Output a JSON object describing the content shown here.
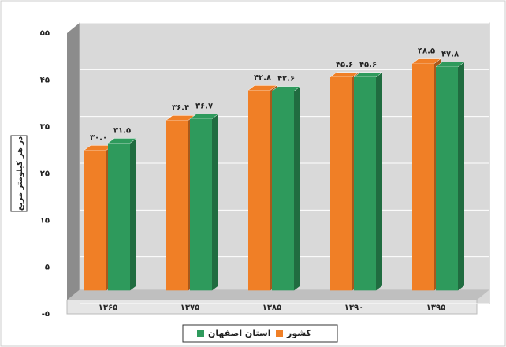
{
  "chart_data": {
    "type": "bar",
    "y_axis_label": "در هر کیلومتر مربع",
    "categories": [
      "۱۳۶۵",
      "۱۳۷۵",
      "۱۳۸۵",
      "۱۳۹۰",
      "۱۳۹۵"
    ],
    "series": [
      {
        "name": "کشور",
        "color": "#f07f26",
        "values": [
          30.0,
          36.4,
          42.8,
          45.6,
          48.5
        ],
        "value_labels": [
          "۳۰.۰",
          "۳۶.۴",
          "۴۲.۸",
          "۴۵.۶",
          "۴۸.۵"
        ]
      },
      {
        "name": "استان اصفهان",
        "color": "#2e9a5c",
        "values": [
          31.5,
          36.7,
          42.6,
          45.6,
          47.8
        ],
        "value_labels": [
          "۳۱.۵",
          "۳۶.۷",
          "۴۲.۶",
          "۴۵.۶",
          "۴۷.۸"
        ]
      }
    ],
    "ylim": [
      -5,
      55
    ],
    "yticks": [
      {
        "value": -5,
        "label": "-۵"
      },
      {
        "value": 5,
        "label": "۵"
      },
      {
        "value": 15,
        "label": "۱۵"
      },
      {
        "value": 25,
        "label": "۲۵"
      },
      {
        "value": 35,
        "label": "۳۵"
      },
      {
        "value": 45,
        "label": "۴۵"
      },
      {
        "value": 55,
        "label": "۵۵"
      }
    ],
    "grid": true,
    "legend": "bottom"
  }
}
